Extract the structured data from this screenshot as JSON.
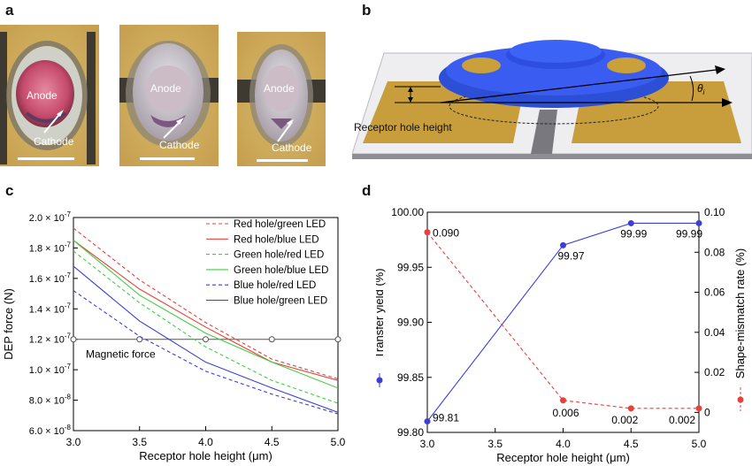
{
  "panels": {
    "a": {
      "letter": "a",
      "anode_label": "Anode",
      "cathode_label": "Cathode"
    },
    "b": {
      "letter": "b",
      "height_label": "Receptor hole height",
      "angle_label": "θ",
      "angle_sub": "i"
    },
    "c": {
      "letter": "c"
    },
    "d": {
      "letter": "d"
    }
  },
  "chart_data": [
    {
      "id": "c",
      "type": "line",
      "title": "",
      "xlabel": "Receptor hole height (μm)",
      "ylabel": "DEP force (N)",
      "xlim": [
        3.0,
        5.0
      ],
      "ylim": [
        6e-08,
        2e-07
      ],
      "x_ticks": [
        "3.0",
        "3.5",
        "4.0",
        "4.5",
        "5.0"
      ],
      "y_tick_mantissas": [
        "2.0",
        "1.8",
        "1.6",
        "1.4",
        "1.2",
        "1.0",
        "8.0",
        "6.0"
      ],
      "y_tick_exponents": [
        "-7",
        "-7",
        "-7",
        "-7",
        "-7",
        "-7",
        "-8",
        "-8"
      ],
      "y_tick_values": [
        2e-07,
        1.8e-07,
        1.6e-07,
        1.4e-07,
        1.2e-07,
        1e-07,
        8e-08,
        6e-08
      ],
      "legend_position": "top-right",
      "series": [
        {
          "name": "Red hole/green LED",
          "color": "#e8403a",
          "dash": true,
          "x": [
            3.0,
            3.5,
            4.0,
            4.5,
            5.0
          ],
          "y": [
            1.93e-07,
            1.59e-07,
            1.31e-07,
            1.07e-07,
            9.4e-08
          ]
        },
        {
          "name": "Red hole/blue LED",
          "color": "#e8403a",
          "dash": false,
          "x": [
            3.0,
            3.5,
            4.0,
            4.5,
            5.0
          ],
          "y": [
            1.85e-07,
            1.53e-07,
            1.28e-07,
            1.05e-07,
            9.3e-08
          ]
        },
        {
          "name": "Green hole/red LED",
          "color": "#3fcf3f",
          "dash": true,
          "x": [
            3.0,
            3.5,
            4.0,
            4.5,
            5.0
          ],
          "y": [
            1.78e-07,
            1.44e-07,
            1.15e-07,
            9.3e-08,
            7.8e-08
          ]
        },
        {
          "name": "Green hole/blue LED",
          "color": "#3fcf3f",
          "dash": false,
          "x": [
            3.0,
            3.5,
            4.0,
            4.5,
            5.0
          ],
          "y": [
            1.85e-07,
            1.49e-07,
            1.24e-07,
            1.05e-07,
            8.8e-08
          ]
        },
        {
          "name": "Blue hole/red LED",
          "color": "#3b3fd6",
          "dash": true,
          "x": [
            3.0,
            3.5,
            4.0,
            4.5,
            5.0
          ],
          "y": [
            1.52e-07,
            1.22e-07,
            9.9e-08,
            8.4e-08,
            7.1e-08
          ]
        },
        {
          "name": "Blue hole/green LED",
          "color": "#3b3fd6",
          "dash": false,
          "x": [
            3.0,
            3.5,
            4.0,
            4.5,
            5.0
          ],
          "y": [
            1.68e-07,
            1.32e-07,
            1.05e-07,
            8.8e-08,
            7.2e-08
          ]
        }
      ],
      "reference_line": {
        "label": "Magnetic force",
        "color": "#555555",
        "x": [
          3.0,
          3.5,
          4.0,
          4.5,
          5.0
        ],
        "y": [
          1.2e-07,
          1.2e-07,
          1.2e-07,
          1.2e-07,
          1.2e-07
        ]
      }
    },
    {
      "id": "d",
      "type": "line",
      "title": "",
      "xlabel": "Receptor hole height (μm)",
      "ylabel_left": "Transfer yield (%)",
      "ylabel_right": "Shape-mismatch rate (%)",
      "xlim": [
        3.0,
        5.0
      ],
      "ylim_left": [
        99.8,
        100.0
      ],
      "ylim_right": [
        -0.01,
        0.1
      ],
      "x_ticks": [
        "3.0",
        "3.5",
        "4.0",
        "4.5",
        "5.0"
      ],
      "y_ticks_left": [
        "100.00",
        "99.95",
        "99.90",
        "99.85",
        "99.80"
      ],
      "y_tick_values_left": [
        100.0,
        99.95,
        99.9,
        99.85,
        99.8
      ],
      "y_ticks_right": [
        "0.10",
        "0.08",
        "0.06",
        "0.04",
        "0.02",
        "0"
      ],
      "y_tick_values_right": [
        0.1,
        0.08,
        0.06,
        0.04,
        0.02,
        0.0
      ],
      "series": [
        {
          "name": "Transfer yield",
          "axis": "left",
          "color": "#3b3fd6",
          "dash": false,
          "x": [
            3.0,
            4.0,
            4.5,
            5.0
          ],
          "y": [
            99.81,
            99.97,
            99.99,
            99.99
          ],
          "labels": [
            "99.81",
            "99.97",
            "99.99",
            "99.99"
          ]
        },
        {
          "name": "Shape-mismatch rate",
          "axis": "right",
          "color": "#e8403a",
          "dash": true,
          "x": [
            3.0,
            4.0,
            4.5,
            5.0
          ],
          "y": [
            0.09,
            0.006,
            0.002,
            0.002
          ],
          "labels": [
            "0.090",
            "0.006",
            "0.002",
            "0.002"
          ]
        }
      ]
    }
  ]
}
